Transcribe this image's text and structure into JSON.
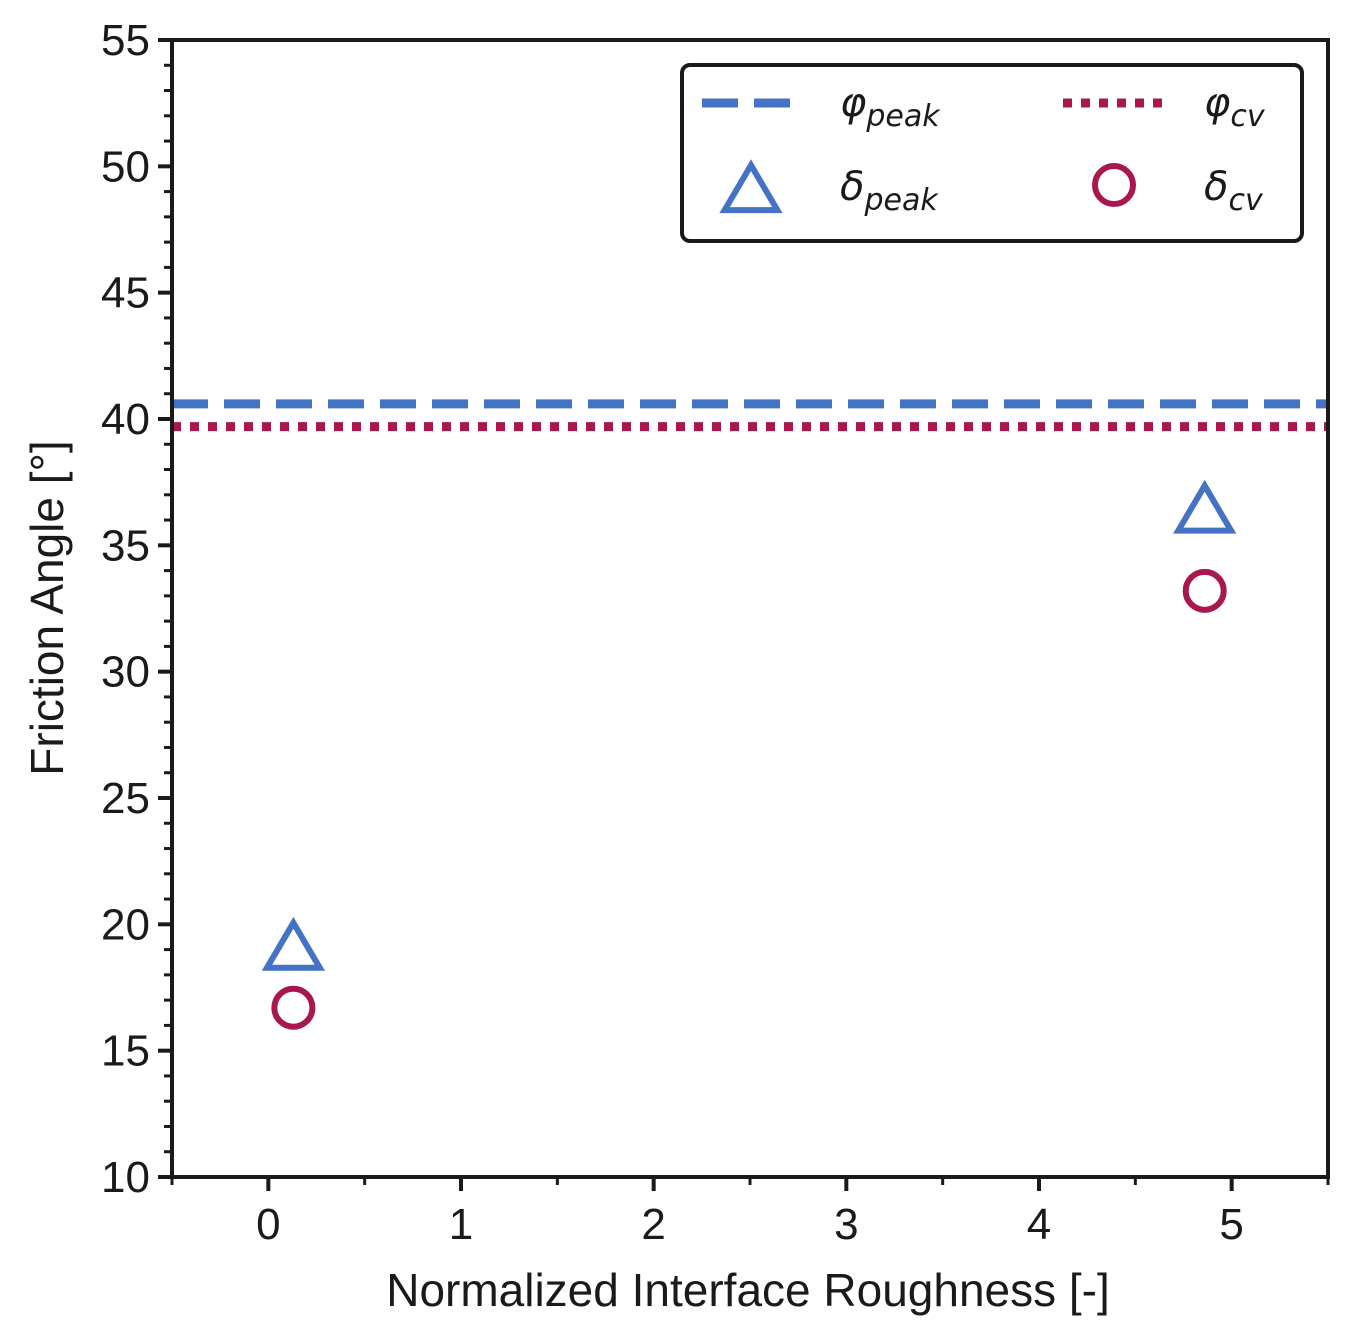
{
  "chart_data": {
    "type": "scatter",
    "xlabel": "Normalized Interface Roughness [-]",
    "ylabel": "Friction Angle [°]",
    "xlim": [
      -0.5,
      5.5
    ],
    "ylim": [
      10,
      55
    ],
    "x_ticks": [
      0,
      1,
      2,
      3,
      4,
      5
    ],
    "x_tick_labels": [
      "0",
      "1",
      "2",
      "3",
      "4",
      "5"
    ],
    "y_ticks": [
      10,
      15,
      20,
      25,
      30,
      35,
      40,
      45,
      50,
      55
    ],
    "y_tick_labels": [
      "10",
      "15",
      "20",
      "25",
      "30",
      "35",
      "40",
      "45",
      "50",
      "55"
    ],
    "grid": false,
    "legend_position": "top-right",
    "hlines": [
      {
        "name": "φ_peak",
        "symbol": "φ",
        "subscript": "peak",
        "y": 40.6,
        "style": "dashed",
        "color": "#4472c4"
      },
      {
        "name": "φ_cv",
        "symbol": "φ",
        "subscript": "cv",
        "y": 39.7,
        "style": "dotted",
        "color": "#a8184f"
      }
    ],
    "series": [
      {
        "name": "δ_peak",
        "symbol": "δ",
        "subscript": "peak",
        "marker": "triangle",
        "color": "#4472c4",
        "x": [
          0.13,
          4.86
        ],
        "y": [
          19.0,
          36.3
        ]
      },
      {
        "name": "δ_cv",
        "symbol": "δ",
        "subscript": "cv",
        "marker": "circle",
        "color": "#a8184f",
        "x": [
          0.13,
          4.86
        ],
        "y": [
          16.7,
          33.2
        ]
      }
    ]
  }
}
